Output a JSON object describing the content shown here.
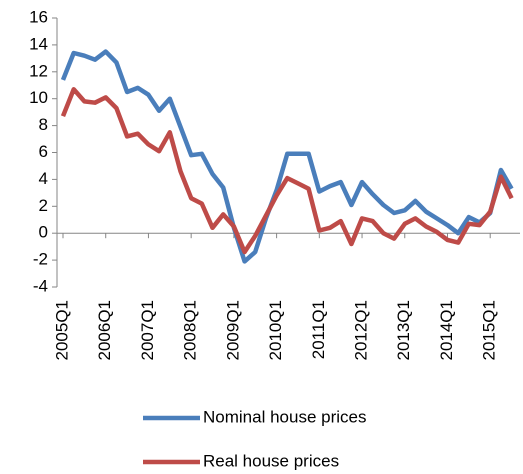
{
  "chart_data": {
    "type": "line",
    "categories": [
      "2005Q1",
      null,
      null,
      null,
      "2006Q1",
      null,
      null,
      null,
      "2007Q1",
      null,
      null,
      null,
      "2008Q1",
      null,
      null,
      null,
      "2009Q1",
      null,
      null,
      null,
      "2010Q1",
      null,
      null,
      null,
      "2011Q1",
      null,
      null,
      null,
      "2012Q1",
      null,
      null,
      null,
      "2013Q1",
      null,
      null,
      null,
      "2014Q1",
      null,
      null,
      null,
      "2015Q1",
      null,
      null
    ],
    "series": [
      {
        "name": "Nominal house prices",
        "color": "#4a7ebb",
        "values": [
          11.4,
          13.4,
          13.2,
          12.9,
          13.5,
          12.7,
          10.5,
          10.8,
          10.3,
          9.1,
          10.0,
          7.9,
          5.8,
          5.9,
          4.4,
          3.4,
          0.4,
          -2.1,
          -1.4,
          1.1,
          3.2,
          5.9,
          5.9,
          5.9,
          3.1,
          3.5,
          3.8,
          2.1,
          3.8,
          2.9,
          2.1,
          1.5,
          1.7,
          2.4,
          1.6,
          1.1,
          0.6,
          0.0,
          1.2,
          0.8,
          1.5,
          4.7,
          3.3
        ]
      },
      {
        "name": "Real house prices",
        "color": "#be4b48",
        "values": [
          8.7,
          10.7,
          9.8,
          9.7,
          10.1,
          9.3,
          7.2,
          7.4,
          6.6,
          6.1,
          7.5,
          4.6,
          2.6,
          2.2,
          0.4,
          1.4,
          0.5,
          -1.4,
          -0.2,
          1.3,
          2.8,
          4.1,
          3.7,
          3.3,
          0.2,
          0.4,
          0.9,
          -0.8,
          1.1,
          0.9,
          0.0,
          -0.4,
          0.7,
          1.1,
          0.5,
          0.1,
          -0.5,
          -0.7,
          0.7,
          0.6,
          1.6,
          4.2,
          2.6
        ]
      }
    ],
    "ylim": [
      -4,
      16
    ],
    "yticks": [
      -4,
      -2,
      0,
      2,
      4,
      6,
      8,
      10,
      12,
      14,
      16
    ]
  }
}
